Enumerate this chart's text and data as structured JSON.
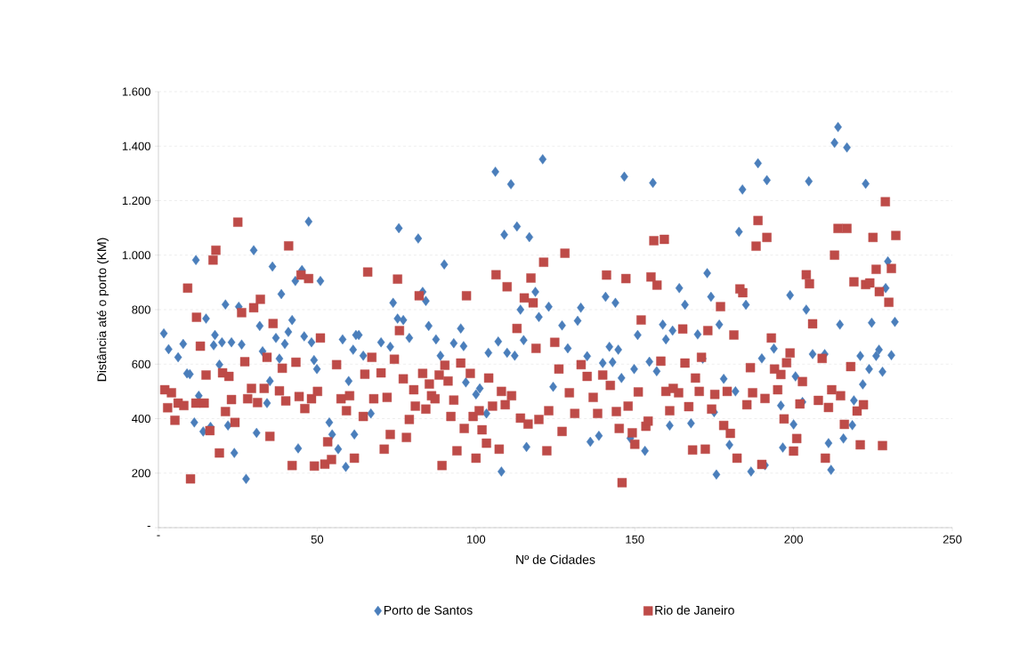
{
  "chart_data": {
    "type": "scatter",
    "xlabel": "Nº de Cidades",
    "ylabel": "Distância até o porto (KM)",
    "xlim": [
      0,
      250
    ],
    "ylim": [
      0,
      1600
    ],
    "xticks": [
      {
        "value": 0,
        "label": "-"
      },
      50,
      100,
      150,
      200,
      250
    ],
    "yticks": [
      {
        "value": 0,
        "label": "-"
      },
      200,
      400,
      600,
      800,
      {
        "value": 1000,
        "label": "1.000"
      },
      {
        "value": 1200,
        "label": "1.200"
      },
      {
        "value": 1400,
        "label": "1.400"
      },
      {
        "value": 1600,
        "label": "1.600"
      }
    ],
    "grid": "y",
    "legend": "bottom",
    "series": [
      {
        "name": "Porto de Santos",
        "color": "#4a7ebb",
        "marker": "diamond",
        "x": [
          1.7,
          3.2,
          6.2,
          7.8,
          9.0,
          9.9,
          11.3,
          11.8,
          12.7,
          14.1,
          15.0,
          16.4,
          17.4,
          17.8,
          19.2,
          20.0,
          21.1,
          21.9,
          23.0,
          23.9,
          25.3,
          26.2,
          27.6,
          30.0,
          30.9,
          31.9,
          32.8,
          34.2,
          35.1,
          35.9,
          37.0,
          38.1,
          38.7,
          39.8,
          40.9,
          42.1,
          43.1,
          44.0,
          45.2,
          45.9,
          47.3,
          48.2,
          49.0,
          49.9,
          51.0,
          53.8,
          54.7,
          56.6,
          58.0,
          59.0,
          59.9,
          61.3,
          61.7,
          62.2,
          63.1,
          64.5,
          66.9,
          70.1,
          73.0,
          73.9,
          75.3,
          75.7,
          77.1,
          79.0,
          81.8,
          83.2,
          84.2,
          85.1,
          87.4,
          88.8,
          90.0,
          93.0,
          95.2,
          96.1,
          96.8,
          100.0,
          101.2,
          103.3,
          103.9,
          106.1,
          107.0,
          108.0,
          108.9,
          109.8,
          111.0,
          112.2,
          112.9,
          114.0,
          115.0,
          115.9,
          116.8,
          118.7,
          119.8,
          121.0,
          122.9,
          124.3,
          127.1,
          128.9,
          132.0,
          133.0,
          135.0,
          136.0,
          138.7,
          139.9,
          140.8,
          142.0,
          143.0,
          143.9,
          144.8,
          145.8,
          146.7,
          148.6,
          149.8,
          150.9,
          153.2,
          154.6,
          155.7,
          156.9,
          158.8,
          159.8,
          161.0,
          161.9,
          164.0,
          165.8,
          167.7,
          169.8,
          171.4,
          172.8,
          174.0,
          175.0,
          175.7,
          176.6,
          178.0,
          179.8,
          181.7,
          182.8,
          183.9,
          185.0,
          186.6,
          188.8,
          190.0,
          191.0,
          191.6,
          193.8,
          196.0,
          196.6,
          198.9,
          200.0,
          200.6,
          202.8,
          204.0,
          204.8,
          206.0,
          209.8,
          211.0,
          211.8,
          212.9,
          214.0,
          214.6,
          215.7,
          216.8,
          218.5,
          219.0,
          221.0,
          221.8,
          222.7,
          223.8,
          224.6,
          226.0,
          226.9,
          228.0,
          229.0,
          229.7,
          230.8,
          231.9
        ],
        "values": [
          713,
          655,
          625,
          674,
          566,
          563,
          386,
          982,
          484,
          353,
          767,
          370,
          669,
          707,
          598,
          680,
          819,
          375,
          680,
          274,
          811,
          672,
          179,
          1018,
          348,
          740,
          647,
          457,
          538,
          958,
          696,
          620,
          857,
          674,
          718,
          762,
          905,
          291,
          945,
          702,
          1123,
          680,
          615,
          582,
          905,
          386,
          342,
          288,
          691,
          223,
          538,
          653,
          342,
          707,
          707,
          631,
          419,
          680,
          664,
          825,
          767,
          1099,
          762,
          696,
          1061,
          865,
          832,
          740,
          691,
          631,
          966,
          677,
          731,
          666,
          533,
          489,
          511,
          419,
          642,
          1306,
          683,
          206,
          1075,
          642,
          1260,
          631,
          1105,
          800,
          688,
          296,
          1066,
          865,
          773,
          1352,
          811,
          517,
          742,
          658,
          759,
          807,
          629,
          315,
          337,
          604,
          847,
          664,
          607,
          825,
          653,
          549,
          1288,
          328,
          582,
          707,
          282,
          609,
          1265,
          574,
          745,
          691,
          375,
          723,
          879,
          818,
          383,
          709,
          620,
          934,
          847,
          424,
          195,
          745,
          546,
          304,
          500,
          1086,
          1241,
          818,
          206,
          1337,
          621,
          229,
          1275,
          657,
          448,
          294,
          853,
          379,
          555,
          461,
          800,
          1271,
          637,
          637,
          310,
          212,
          1412,
          1470,
          745,
          327,
          1395,
          376,
          467,
          630,
          526,
          1262,
          582,
          752,
          630,
          653,
          572,
          879,
          977,
          633,
          755
        ]
      },
      {
        "name": "Rio de Janeiro",
        "color": "#be4b48",
        "marker": "square",
        "x": [
          2.0,
          2.9,
          4.1,
          5.2,
          6.2,
          8.0,
          9.2,
          10.1,
          11.8,
          12.0,
          13.2,
          14.4,
          15.0,
          16.2,
          17.2,
          18.1,
          19.2,
          20.2,
          21.1,
          22.2,
          23.0,
          24.1,
          25.0,
          26.2,
          27.2,
          28.1,
          29.3,
          30.0,
          31.2,
          32.1,
          33.3,
          34.2,
          35.1,
          36.1,
          38.1,
          39.0,
          40.1,
          41.0,
          42.1,
          43.3,
          44.3,
          44.9,
          46.1,
          47.3,
          48.2,
          49.1,
          50.1,
          51.0,
          52.4,
          53.3,
          54.5,
          56.1,
          57.5,
          59.2,
          60.2,
          61.7,
          64.5,
          65.0,
          65.9,
          67.2,
          67.8,
          70.1,
          71.1,
          72.0,
          73.0,
          74.3,
          75.3,
          75.9,
          77.1,
          78.1,
          79.0,
          80.4,
          80.9,
          82.1,
          83.2,
          84.2,
          85.3,
          86.0,
          87.1,
          88.4,
          89.3,
          90.2,
          91.2,
          92.1,
          93.0,
          94.0,
          95.2,
          96.3,
          97.0,
          98.2,
          99.1,
          100.0,
          101.0,
          101.9,
          103.3,
          104.0,
          105.2,
          106.3,
          107.3,
          108.0,
          109.2,
          109.8,
          111.2,
          112.9,
          114.0,
          115.2,
          116.4,
          117.3,
          118.0,
          118.9,
          119.8,
          121.3,
          122.3,
          122.9,
          124.8,
          126.1,
          127.1,
          128.0,
          129.4,
          131.1,
          133.1,
          135.0,
          136.9,
          138.3,
          139.9,
          141.1,
          142.3,
          144.2,
          145.1,
          146.0,
          147.2,
          147.9,
          149.2,
          150.0,
          151.1,
          152.0,
          153.5,
          154.2,
          155.1,
          156.0,
          157.0,
          158.2,
          159.3,
          159.8,
          161.0,
          162.1,
          163.8,
          165.1,
          165.8,
          167.0,
          168.2,
          169.1,
          170.3,
          171.0,
          172.2,
          173.0,
          174.2,
          175.2,
          177.0,
          178.0,
          179.1,
          180.1,
          181.2,
          182.2,
          183.1,
          184.0,
          185.3,
          186.4,
          187.1,
          188.2,
          188.8,
          190.0,
          191.0,
          191.6,
          193.0,
          194.0,
          195.0,
          196.0,
          197.0,
          197.8,
          198.9,
          200.0,
          201.0,
          202.0,
          202.8,
          204.0,
          205.0,
          206.0,
          207.8,
          209.0,
          210.0,
          211.0,
          212.0,
          212.9,
          214.0,
          214.8,
          216.0,
          216.8,
          218.0,
          219.0,
          220.0,
          221.0,
          222.0,
          222.7,
          224.0,
          225.0,
          226.0,
          227.0,
          228.0,
          228.9,
          230.0,
          230.8,
          232.2
        ],
        "values": [
          506,
          440,
          495,
          394,
          457,
          448,
          879,
          179,
          457,
          772,
          666,
          457,
          560,
          356,
          982,
          1018,
          274,
          568,
          426,
          555,
          470,
          386,
          1121,
          789,
          609,
          473,
          511,
          807,
          459,
          838,
          511,
          625,
          335,
          749,
          502,
          585,
          465,
          1034,
          228,
          607,
          481,
          927,
          437,
          914,
          473,
          226,
          500,
          696,
          233,
          315,
          250,
          598,
          473,
          429,
          484,
          255,
          408,
          563,
          938,
          625,
          473,
          568,
          288,
          478,
          342,
          618,
          912,
          723,
          546,
          331,
          397,
          506,
          446,
          851,
          566,
          435,
          527,
          484,
          473,
          560,
          228,
          596,
          538,
          408,
          468,
          282,
          604,
          364,
          851,
          566,
          408,
          255,
          429,
          359,
          310,
          549,
          446,
          928,
          288,
          500,
          451,
          884,
          484,
          731,
          402,
          843,
          380,
          916,
          825,
          658,
          397,
          974,
          282,
          429,
          680,
          582,
          353,
          1007,
          495,
          419,
          598,
          555,
          478,
          419,
          560,
          927,
          522,
          426,
          364,
          165,
          914,
          446,
          348,
          306,
          498,
          762,
          372,
          391,
          920,
          1053,
          890,
          611,
          1058,
          500,
          429,
          511,
          495,
          729,
          604,
          444,
          285,
          549,
          500,
          625,
          288,
          723,
          435,
          489,
          811,
          375,
          500,
          346,
          707,
          255,
          876,
          862,
          451,
          587,
          495,
          1033,
          1127,
          232,
          474,
          1065,
          696,
          582,
          506,
          562,
          399,
          605,
          641,
          281,
          327,
          454,
          536,
          928,
          895,
          748,
          467,
          621,
          255,
          441,
          506,
          1000,
          1098,
          484,
          379,
          1098,
          591,
          902,
          428,
          304,
          451,
          892,
          898,
          1065,
          948,
          866,
          301,
          1196,
          827,
          951,
          1072
        ]
      }
    ]
  }
}
